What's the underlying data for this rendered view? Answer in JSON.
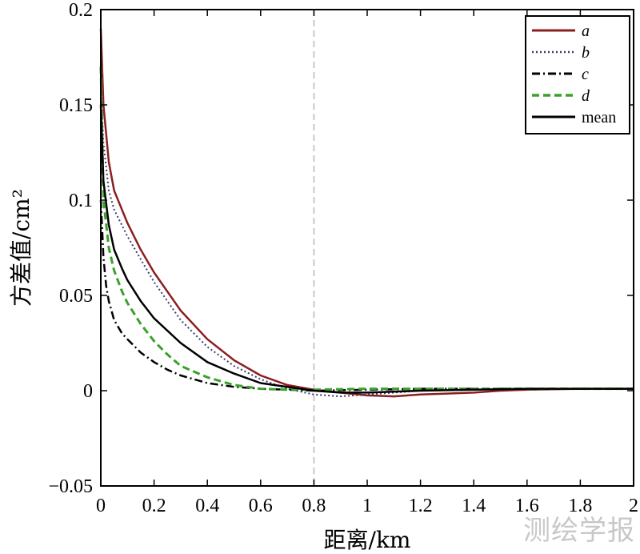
{
  "chart_data": {
    "type": "line",
    "xlabel": "距离/km",
    "ylabel": "方差值/cm²",
    "xlim": [
      0,
      2
    ],
    "ylim": [
      -0.05,
      0.2
    ],
    "x_ticks": [
      "0",
      "0.2",
      "0.4",
      "0.6",
      "0.8",
      "1",
      "1.2",
      "1.4",
      "1.6",
      "1.8",
      "2"
    ],
    "y_ticks": [
      "−0.05",
      "0",
      "0.05",
      "0.1",
      "0.15",
      "0.2"
    ],
    "reference_line_x": 0.8,
    "legend_position": "top-right",
    "series": [
      {
        "name": "a",
        "color": "#8b1f1f",
        "style": "solid",
        "x": [
          0,
          0.01,
          0.03,
          0.05,
          0.1,
          0.15,
          0.2,
          0.3,
          0.4,
          0.5,
          0.6,
          0.7,
          0.8,
          0.9,
          1.0,
          1.1,
          1.2,
          1.3,
          1.4,
          1.5,
          1.6,
          1.8,
          2.0
        ],
        "y": [
          0.19,
          0.15,
          0.12,
          0.105,
          0.088,
          0.074,
          0.062,
          0.042,
          0.027,
          0.016,
          0.008,
          0.003,
          0.0005,
          -0.001,
          -0.0025,
          -0.003,
          -0.002,
          -0.0015,
          -0.001,
          0,
          0.0005,
          0.001,
          0.001
        ]
      },
      {
        "name": "b",
        "color": "#3a3a6e",
        "style": "dotted",
        "x": [
          0,
          0.01,
          0.03,
          0.05,
          0.1,
          0.15,
          0.2,
          0.3,
          0.4,
          0.5,
          0.6,
          0.7,
          0.8,
          0.9,
          1.0,
          1.1,
          1.2,
          1.4,
          1.6,
          1.8,
          2.0
        ],
        "y": [
          0.16,
          0.13,
          0.105,
          0.095,
          0.081,
          0.069,
          0.057,
          0.037,
          0.023,
          0.013,
          0.006,
          0.001,
          -0.002,
          -0.003,
          -0.002,
          -0.001,
          0,
          0.0005,
          0.001,
          0.001,
          0.001
        ]
      },
      {
        "name": "c",
        "color": "#000000",
        "style": "dashdot",
        "x": [
          0,
          0.005,
          0.01,
          0.02,
          0.03,
          0.05,
          0.08,
          0.1,
          0.15,
          0.2,
          0.25,
          0.3,
          0.4,
          0.5,
          0.6,
          0.7,
          0.8,
          1.0,
          1.2,
          1.4,
          1.6,
          1.8,
          2.0
        ],
        "y": [
          0.1,
          0.085,
          0.07,
          0.055,
          0.047,
          0.037,
          0.03,
          0.027,
          0.02,
          0.015,
          0.011,
          0.008,
          0.004,
          0.002,
          0.001,
          0.0005,
          0,
          0.0005,
          0.001,
          0.001,
          0.001,
          0.001,
          0.001
        ]
      },
      {
        "name": "d",
        "color": "#3aa12a",
        "style": "dashed",
        "x": [
          0,
          0.01,
          0.03,
          0.05,
          0.08,
          0.1,
          0.15,
          0.2,
          0.25,
          0.3,
          0.4,
          0.5,
          0.6,
          0.7,
          0.8,
          1.0,
          1.2,
          1.4,
          1.6,
          1.8,
          2.0
        ],
        "y": [
          0.17,
          0.1,
          0.075,
          0.063,
          0.052,
          0.046,
          0.035,
          0.026,
          0.019,
          0.013,
          0.007,
          0.003,
          0.001,
          0.0005,
          0.0005,
          0.001,
          0.001,
          0.001,
          0.001,
          0.001,
          0.001
        ]
      },
      {
        "name": "mean",
        "color": "#000000",
        "style": "solid",
        "x": [
          0,
          0.01,
          0.03,
          0.05,
          0.08,
          0.1,
          0.15,
          0.2,
          0.3,
          0.4,
          0.5,
          0.6,
          0.7,
          0.8,
          0.9,
          1.0,
          1.2,
          1.4,
          1.6,
          1.8,
          2.0
        ],
        "y": [
          0.15,
          0.11,
          0.087,
          0.074,
          0.064,
          0.058,
          0.047,
          0.038,
          0.025,
          0.015,
          0.009,
          0.004,
          0.002,
          0,
          -0.001,
          -0.001,
          0,
          0.0005,
          0.001,
          0.001,
          0.001
        ]
      }
    ]
  },
  "watermark": "测绘学报"
}
